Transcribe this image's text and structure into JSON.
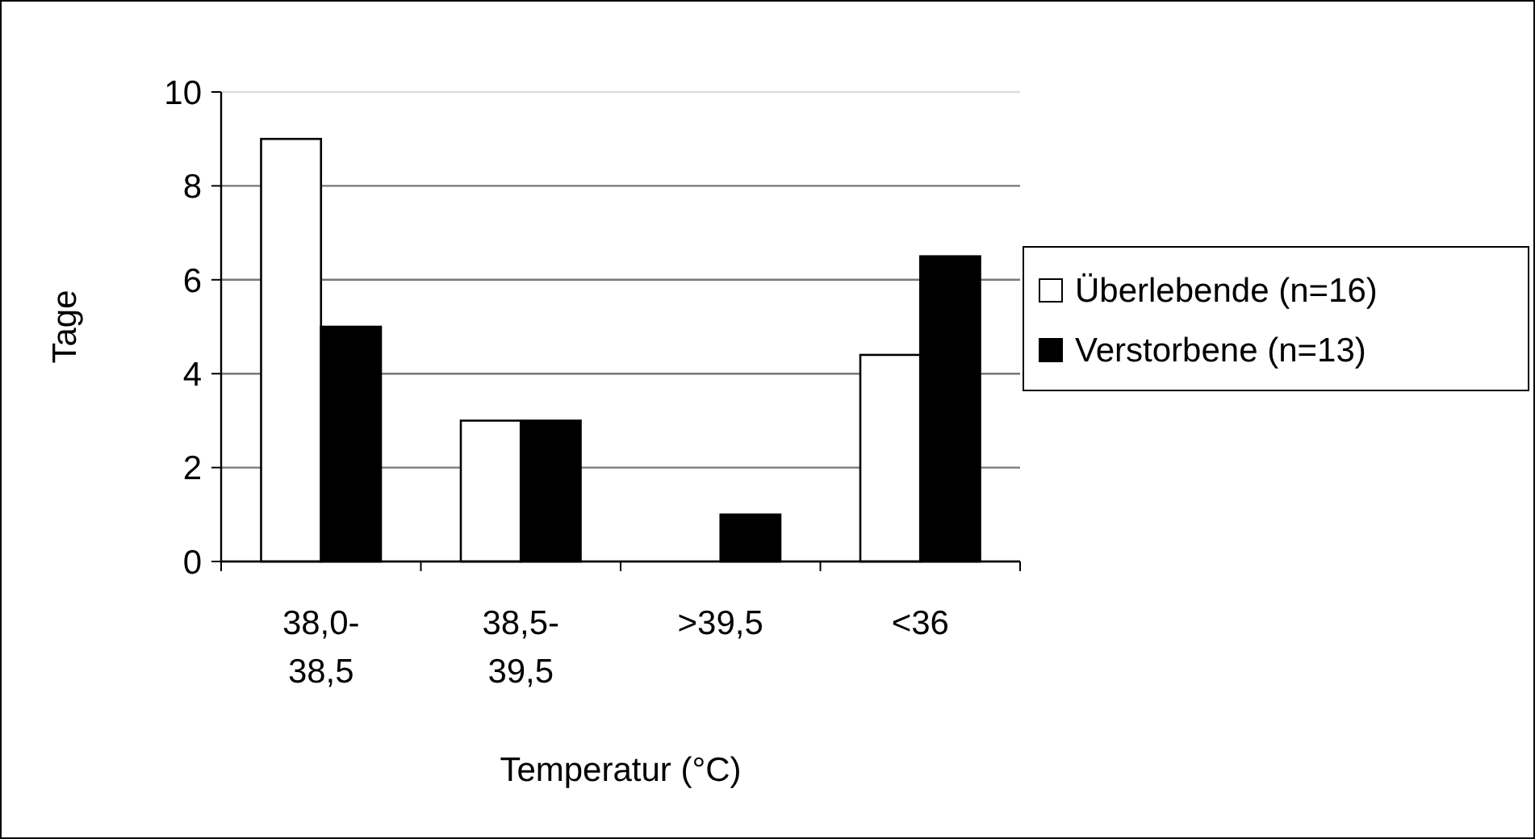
{
  "chart_data": {
    "type": "bar",
    "xlabel": "Temperatur (°C)",
    "ylabel": "Tage",
    "categories": [
      "38,0-38,5",
      "38,5-39,5",
      ">39,5",
      "<36"
    ],
    "series": [
      {
        "name": "Überlebende (n=16)",
        "color": "#ffffff",
        "values": [
          9,
          3,
          0,
          4.4
        ]
      },
      {
        "name": "Verstorbene (n=13)",
        "color": "#000000",
        "values": [
          5,
          3,
          1,
          6.5
        ]
      }
    ],
    "ylim": [
      0,
      10
    ],
    "yticks": [
      0,
      2,
      4,
      6,
      8,
      10
    ],
    "grid": "y",
    "legend": "right"
  }
}
